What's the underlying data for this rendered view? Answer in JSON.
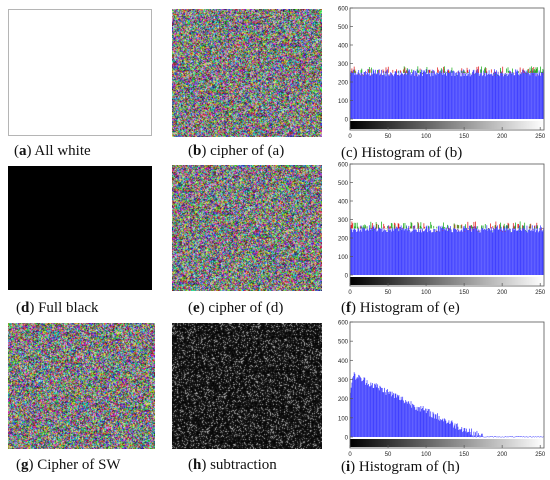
{
  "panels": [
    {
      "key": "a",
      "label": "a",
      "text": "All white",
      "kind": "image",
      "fill": "white"
    },
    {
      "key": "b",
      "label": "b",
      "text": "cipher of (a)",
      "kind": "image",
      "fill": "noise-color"
    },
    {
      "key": "c",
      "label": "c",
      "text": "Histogram of (b)",
      "kind": "histogram"
    },
    {
      "key": "d",
      "label": "d",
      "text": "Full black",
      "kind": "image",
      "fill": "black"
    },
    {
      "key": "e",
      "label": "e",
      "text": "cipher of (d)",
      "kind": "image",
      "fill": "noise-color"
    },
    {
      "key": "f",
      "label": "f",
      "text": "Histogram of (e)",
      "kind": "histogram"
    },
    {
      "key": "g",
      "label": "g",
      "text": "Cipher of SW",
      "kind": "image",
      "fill": "noise-color"
    },
    {
      "key": "h",
      "label": "h",
      "text": "subtraction",
      "kind": "image",
      "fill": "noise-gray-sparse"
    },
    {
      "key": "i",
      "label": "i",
      "text": "Histogram of (h)",
      "kind": "histogram"
    }
  ],
  "chart_data": [
    {
      "type": "bar",
      "panel": "c",
      "xlim": [
        0,
        255
      ],
      "ylim": [
        0,
        600
      ],
      "xticks": [
        0,
        50,
        100,
        150,
        200,
        250
      ],
      "yticks": [
        0,
        100,
        200,
        300,
        400,
        500,
        600
      ],
      "series": [
        {
          "color": "#4040ff",
          "approx_value": 256,
          "spread": [
            230,
            270
          ]
        },
        {
          "color": "#e02020",
          "approx_value": 256,
          "spread": [
            235,
            285
          ]
        },
        {
          "color": "#20b020",
          "approx_value": 256,
          "spread": [
            235,
            285
          ]
        }
      ],
      "colorbar": "gray-ramp"
    },
    {
      "type": "bar",
      "panel": "f",
      "xlim": [
        0,
        255
      ],
      "ylim": [
        0,
        600
      ],
      "xticks": [
        0,
        50,
        100,
        150,
        200,
        250
      ],
      "yticks": [
        0,
        100,
        200,
        300,
        400,
        500,
        600
      ],
      "series": [
        {
          "color": "#4040ff",
          "approx_value": 256,
          "spread": [
            230,
            270
          ]
        },
        {
          "color": "#e02020",
          "approx_value": 256,
          "spread": [
            235,
            290
          ]
        },
        {
          "color": "#20b020",
          "approx_value": 256,
          "spread": [
            235,
            290
          ]
        }
      ],
      "colorbar": "gray-ramp"
    },
    {
      "type": "bar",
      "panel": "i",
      "xlim": [
        0,
        255
      ],
      "ylim": [
        0,
        600
      ],
      "xticks": [
        0,
        50,
        100,
        150,
        200,
        250
      ],
      "yticks": [
        0,
        100,
        200,
        300,
        400,
        500,
        600
      ],
      "series": [
        {
          "color": "#4040ff",
          "shape": "decreasing",
          "start_value": 330,
          "zero_at": 175
        }
      ],
      "colorbar": "gray-ramp"
    }
  ],
  "colors": {
    "hist_blue": "#4040ff",
    "hist_red": "#e02020",
    "hist_green": "#20b020"
  }
}
